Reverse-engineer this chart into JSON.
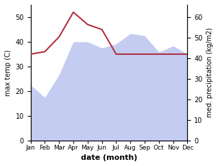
{
  "months": [
    "Jan",
    "Feb",
    "Mar",
    "Apr",
    "May",
    "Jun",
    "Jul",
    "Aug",
    "Sep",
    "Oct",
    "Nov",
    "Dec"
  ],
  "month_x": [
    1,
    2,
    3,
    4,
    5,
    6,
    7,
    8,
    9,
    10,
    11,
    12
  ],
  "precip": [
    27,
    21,
    32,
    48,
    48,
    45,
    47,
    52,
    51,
    43,
    46,
    42
  ],
  "max_temp": [
    35,
    36,
    42,
    52,
    47,
    45,
    35,
    35,
    35,
    35,
    35,
    35
  ],
  "temp_ylim": [
    0,
    55
  ],
  "precip_ylim": [
    0,
    66
  ],
  "temp_yticks": [
    0,
    10,
    20,
    30,
    40,
    50
  ],
  "precip_yticks": [
    0,
    10,
    20,
    30,
    40,
    50,
    60
  ],
  "fill_color": "#b0bcee",
  "fill_alpha": 0.75,
  "line_color": "#b03040",
  "xlabel": "date (month)",
  "ylabel_left": "max temp (C)",
  "ylabel_right": "med. precipitation (kg/m2)",
  "bg_color": "#ffffff",
  "axes_bg_color": "#ffffff"
}
